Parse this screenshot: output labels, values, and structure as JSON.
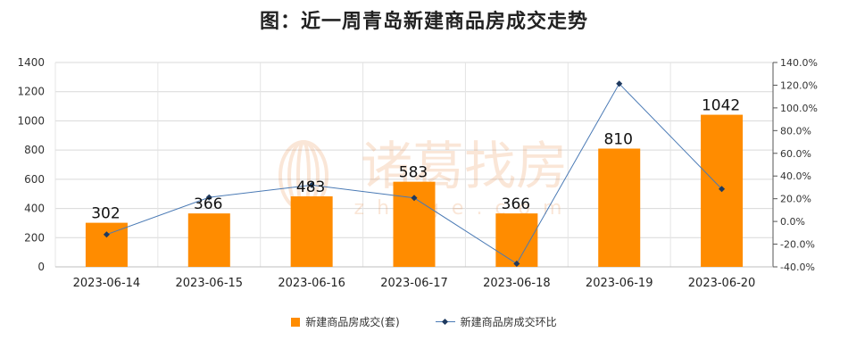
{
  "chart_data": {
    "type": "bar",
    "title": "图：近一周青岛新建商品房成交走势",
    "categories": [
      "2023-06-14",
      "2023-06-15",
      "2023-06-16",
      "2023-06-17",
      "2023-06-18",
      "2023-06-19",
      "2023-06-20"
    ],
    "series": [
      {
        "name": "新建商品房成交(套)",
        "type": "bar",
        "axis": "left",
        "values": [
          302,
          366,
          483,
          583,
          366,
          810,
          1042
        ],
        "color": "#ff8c00"
      },
      {
        "name": "新建商品房成交环比",
        "type": "line",
        "axis": "right",
        "values": [
          -11.5,
          21.2,
          32.0,
          20.7,
          -37.2,
          121.3,
          28.6
        ],
        "color": "#4a7ab5"
      }
    ],
    "y_left": {
      "ylim": [
        0,
        1400
      ],
      "ticks": [
        0,
        200,
        400,
        600,
        800,
        1000,
        1200,
        1400
      ]
    },
    "y_right": {
      "ylim": [
        -40,
        140
      ],
      "ticks": [
        -40,
        -20,
        0,
        20,
        40,
        60,
        80,
        100,
        120,
        140
      ],
      "tick_labels": [
        "-40.0%",
        "-20.0%",
        "0.0%",
        "20.0%",
        "40.0%",
        "60.0%",
        "80.0%",
        "100.0%",
        "120.0%",
        "140.0%"
      ]
    },
    "grid": true,
    "legend_position": "bottom"
  },
  "watermark": {
    "text": "诸葛找房",
    "subtext": "zhuge.com"
  }
}
